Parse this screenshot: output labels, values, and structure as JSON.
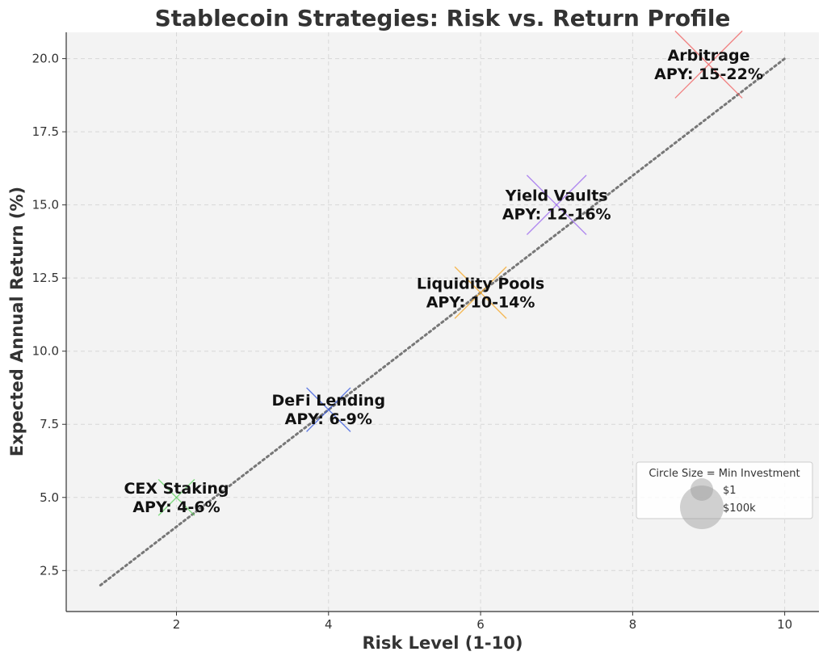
{
  "chart_data": {
    "type": "scatter",
    "title": "Stablecoin Strategies: Risk vs. Return Profile",
    "xlabel": "Risk Level (1-10)",
    "ylabel": "Expected Annual Return (%)",
    "xlim": [
      0.55,
      10.45
    ],
    "ylim": [
      1.1,
      20.9
    ],
    "xticks": [
      "2",
      "4",
      "6",
      "8",
      "10"
    ],
    "yticks": [
      "2.5",
      "5.0",
      "7.5",
      "10.0",
      "12.5",
      "15.0",
      "17.5",
      "20.0"
    ],
    "grid": true,
    "points": [
      {
        "name": "CEX Staking",
        "apy": "APY: 4-6%",
        "x": 2,
        "y": 5,
        "marker_size": 0.7,
        "color": "#5fd35f"
      },
      {
        "name": "DeFi Lending",
        "apy": "APY: 6-9%",
        "x": 4,
        "y": 8,
        "marker_size": 0.85,
        "color": "#3355dd"
      },
      {
        "name": "Liquidity Pools",
        "apy": "APY: 10-14%",
        "x": 6,
        "y": 12,
        "marker_size": 1.0,
        "color": "#f5a623"
      },
      {
        "name": "Yield Vaults",
        "apy": "APY: 12-16%",
        "x": 7,
        "y": 15,
        "marker_size": 1.15,
        "color": "#9966ee"
      },
      {
        "name": "Arbitrage",
        "apy": "APY: 15-22%",
        "x": 9,
        "y": 19.8,
        "marker_size": 1.3,
        "color": "#f06060"
      }
    ],
    "trend_line": {
      "x": [
        1,
        10
      ],
      "y": [
        2,
        20
      ],
      "style": "dotted",
      "color": "#777777"
    },
    "legend": {
      "title": "Circle Size = Min Investment",
      "entries": [
        "$1",
        "$100k"
      ],
      "placement": "lower-right"
    }
  }
}
